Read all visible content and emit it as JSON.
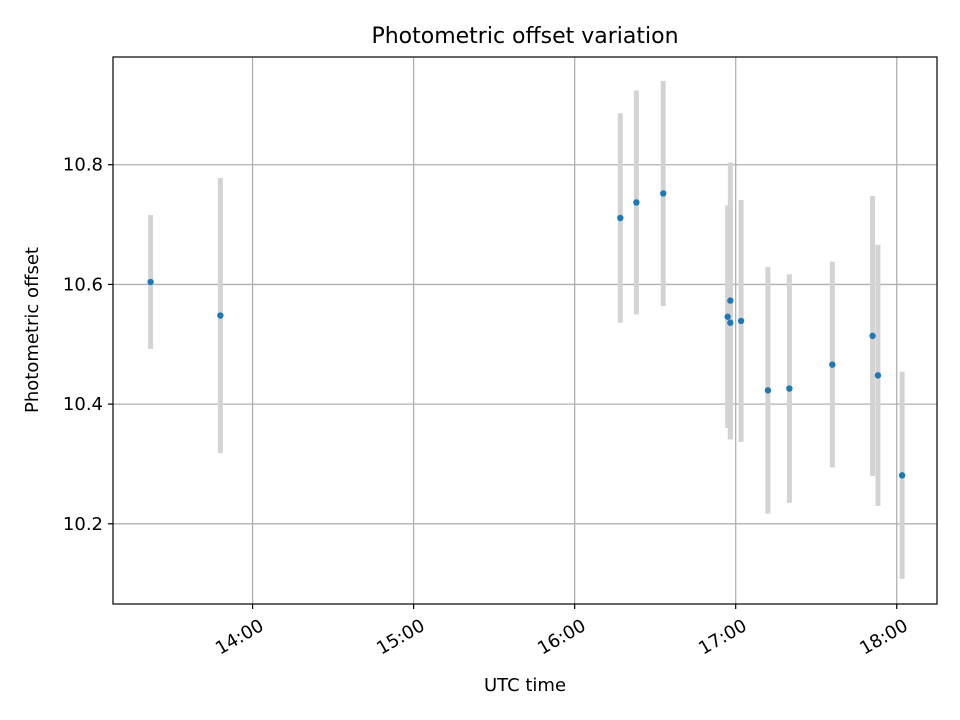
{
  "chart_data": {
    "type": "scatter",
    "title": "Photometric offset variation",
    "xlabel": "UTC time",
    "ylabel": "Photometric offset",
    "x_axis_type": "time",
    "xlim": [
      "13:08",
      "18:15"
    ],
    "ylim": [
      10.066,
      10.98
    ],
    "x_ticks": [
      "14:00",
      "15:00",
      "16:00",
      "17:00",
      "18:00"
    ],
    "y_ticks": [
      10.2,
      10.4,
      10.6,
      10.8
    ],
    "y_tick_labels": [
      "10.2",
      "10.4",
      "10.6",
      "10.8"
    ],
    "grid": true,
    "legend": "none",
    "colors": {
      "point": "#1f77b4",
      "errorbar": "#d3d3d3",
      "grid": "#b0b0b0"
    },
    "series": [
      {
        "points": [
          {
            "x": "13:22",
            "y": 10.604,
            "err": 0.112
          },
          {
            "x": "13:48",
            "y": 10.548,
            "err": 0.23
          },
          {
            "x": "16:17",
            "y": 10.711,
            "err": 0.175
          },
          {
            "x": "16:23",
            "y": 10.737,
            "err": 0.187
          },
          {
            "x": "16:33",
            "y": 10.752,
            "err": 0.188
          },
          {
            "x": "16:57",
            "y": 10.546,
            "err": 0.186
          },
          {
            "x": "16:58",
            "y": 10.536,
            "err": 0.195
          },
          {
            "x": "16:58",
            "y": 10.573,
            "err": 0.231
          },
          {
            "x": "17:02",
            "y": 10.539,
            "err": 0.202
          },
          {
            "x": "17:12",
            "y": 10.423,
            "err": 0.206
          },
          {
            "x": "17:20",
            "y": 10.426,
            "err": 0.191
          },
          {
            "x": "17:36",
            "y": 10.466,
            "err": 0.172
          },
          {
            "x": "17:51",
            "y": 10.514,
            "err": 0.234
          },
          {
            "x": "17:53",
            "y": 10.448,
            "err": 0.218
          },
          {
            "x": "18:02",
            "y": 10.281,
            "err": 0.173
          }
        ]
      }
    ]
  }
}
